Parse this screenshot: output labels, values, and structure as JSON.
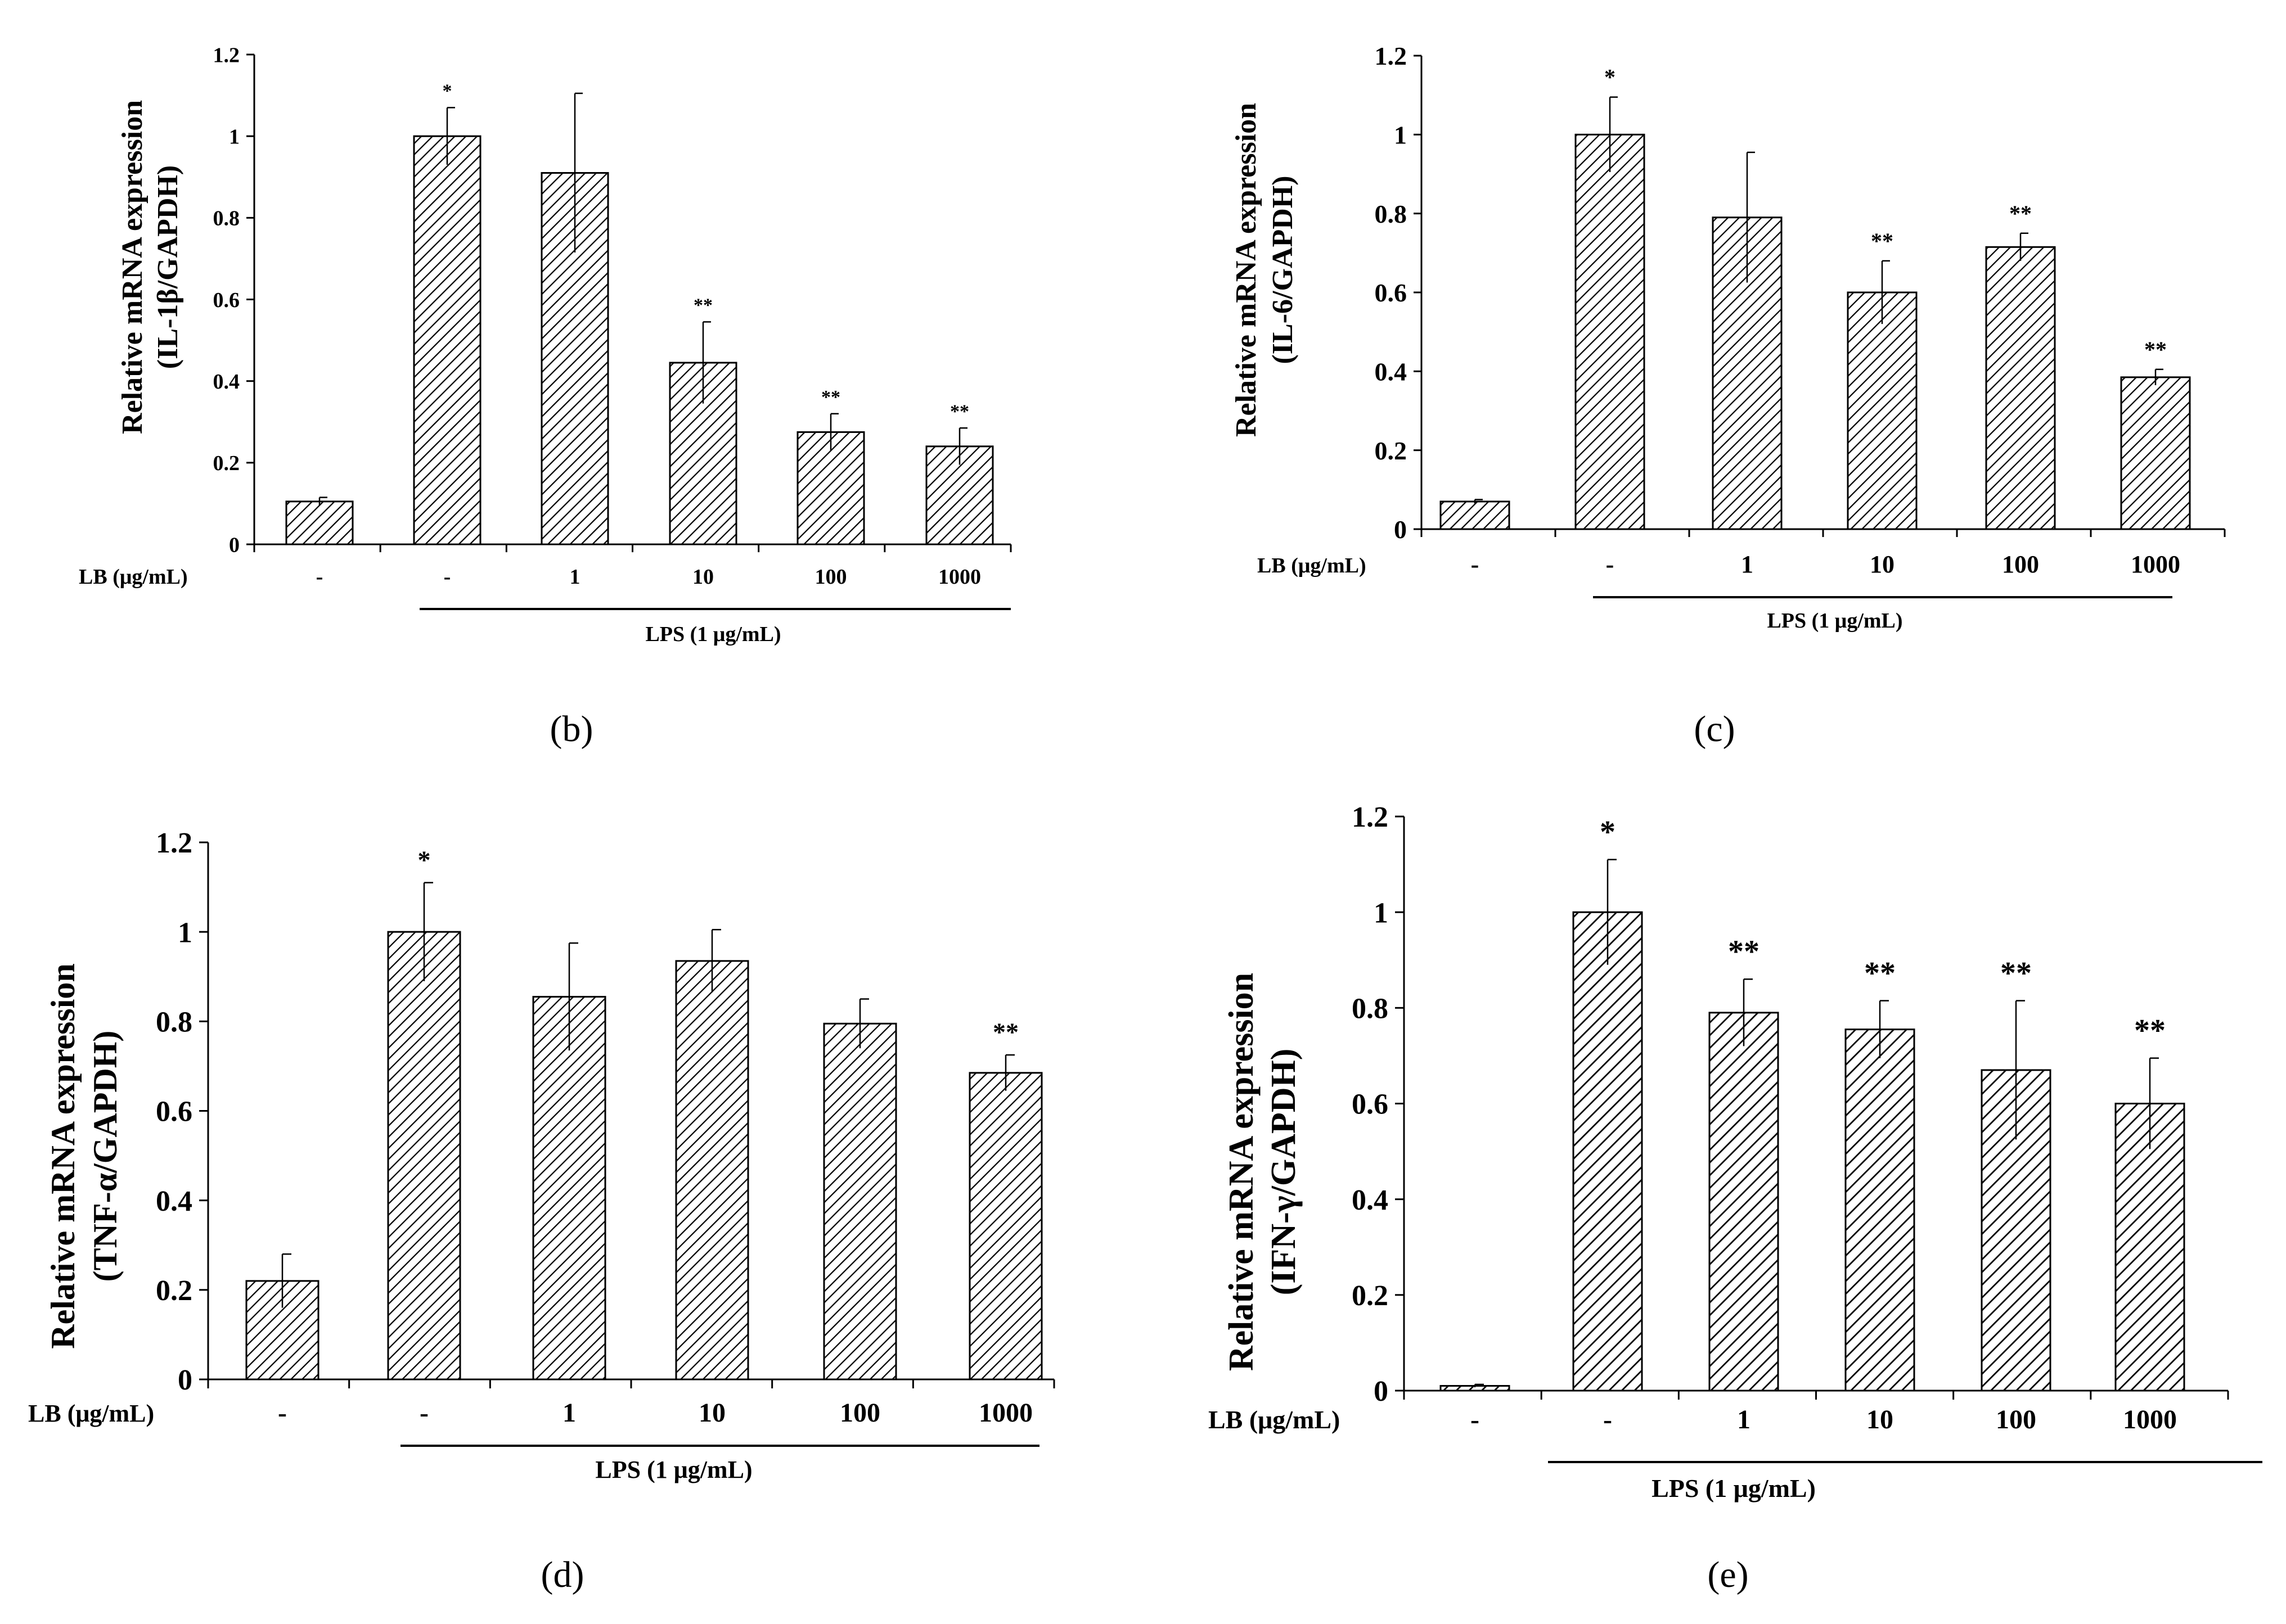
{
  "colors": {
    "ink": "#000000",
    "bar_fill": "#ffffff",
    "hatch": "#000000"
  },
  "chart_data": [
    {
      "panel": "(b)",
      "type": "bar",
      "ylabel_line1": "Relative mRNA expression",
      "ylabel_line2": "(IL-1β/GAPDH)",
      "ylim": [
        0,
        1.2
      ],
      "yticks": [
        "0",
        "0.2",
        "0.4",
        "0.6",
        "0.8",
        "1",
        "1.2"
      ],
      "ytick_values": [
        0,
        0.2,
        0.4,
        0.6,
        0.8,
        1.0,
        1.2
      ],
      "row_label": "LB (μg/mL)",
      "categories": [
        "-",
        "-",
        "1",
        "10",
        "100",
        "1000"
      ],
      "values": [
        0.105,
        1.0,
        0.91,
        0.445,
        0.275,
        0.24
      ],
      "errors": [
        0.01,
        0.07,
        0.195,
        0.1,
        0.045,
        0.045
      ],
      "annotations": [
        "",
        "*",
        "",
        "**",
        "**",
        "**"
      ],
      "group_label": "LPS (1 μg/mL)"
    },
    {
      "panel": "(c)",
      "type": "bar",
      "ylabel_line1": "Relative mRNA expression",
      "ylabel_line2": "(IL-6/GAPDH)",
      "ylim": [
        0,
        1.2
      ],
      "yticks": [
        "0",
        "0.2",
        "0.4",
        "0.6",
        "0.8",
        "1",
        "1.2"
      ],
      "ytick_values": [
        0,
        0.2,
        0.4,
        0.6,
        0.8,
        1.0,
        1.2
      ],
      "row_label": "LB (μg/mL)",
      "categories": [
        "-",
        "-",
        "1",
        "10",
        "100",
        "1000"
      ],
      "values": [
        0.07,
        1.0,
        0.79,
        0.6,
        0.715,
        0.385
      ],
      "errors": [
        0.005,
        0.095,
        0.165,
        0.08,
        0.035,
        0.02
      ],
      "annotations": [
        "",
        "*",
        "",
        "**",
        "**",
        "**"
      ],
      "group_label": "LPS (1 μg/mL)"
    },
    {
      "panel": "(d)",
      "type": "bar",
      "ylabel_line1": "Relative mRNA expression",
      "ylabel_line2": "(TNF-α/GAPDH)",
      "ylim": [
        0,
        1.2
      ],
      "yticks": [
        "0",
        "0.2",
        "0.4",
        "0.6",
        "0.8",
        "1",
        "1.2"
      ],
      "ytick_values": [
        0,
        0.2,
        0.4,
        0.6,
        0.8,
        1.0,
        1.2
      ],
      "row_label": "LB (μg/mL)",
      "categories": [
        "-",
        "-",
        "1",
        "10",
        "100",
        "1000"
      ],
      "values": [
        0.22,
        1.0,
        0.855,
        0.935,
        0.795,
        0.685
      ],
      "errors": [
        0.06,
        0.11,
        0.12,
        0.07,
        0.055,
        0.04
      ],
      "annotations": [
        "",
        "*",
        "",
        "",
        "",
        "**"
      ],
      "group_label": "LPS (1 μg/mL)"
    },
    {
      "panel": "(e)",
      "type": "bar",
      "ylabel_line1": "Relative mRNA expression",
      "ylabel_line2": "(IFN-γ/GAPDH)",
      "ylim": [
        0,
        1.2
      ],
      "yticks": [
        "0",
        "0.2",
        "0.4",
        "0.6",
        "0.8",
        "1",
        "1.2"
      ],
      "ytick_values": [
        0,
        0.2,
        0.4,
        0.6,
        0.8,
        1.0,
        1.2
      ],
      "row_label": "LB (μg/mL)",
      "categories": [
        "-",
        "-",
        "1",
        "10",
        "100",
        "1000"
      ],
      "values": [
        0.01,
        1.0,
        0.79,
        0.755,
        0.67,
        0.6
      ],
      "errors": [
        0.003,
        0.11,
        0.07,
        0.06,
        0.145,
        0.095
      ],
      "annotations": [
        "",
        "*",
        "**",
        "**",
        "**",
        "**"
      ],
      "group_label": "LPS (1 μg/mL)"
    }
  ]
}
